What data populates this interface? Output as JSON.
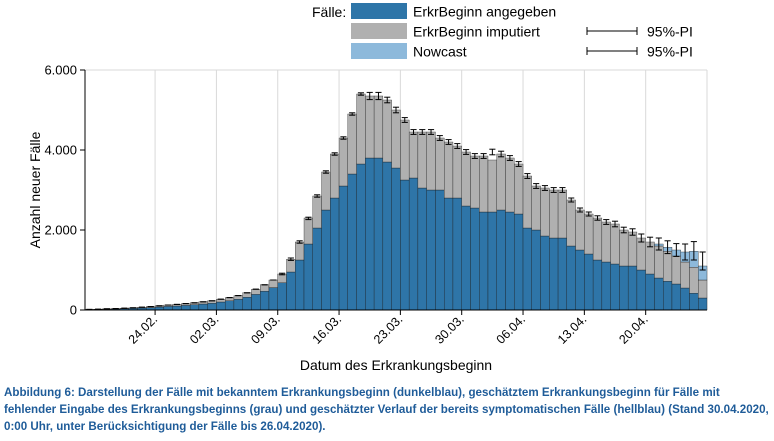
{
  "chart_data": {
    "type": "bar",
    "stacked": true,
    "title": "",
    "xlabel": "Datum des Erkrankungsbeginn",
    "ylabel": "Anzahl neuer Fälle",
    "ylim": [
      0,
      6000
    ],
    "yticks": [
      0,
      2000,
      4000,
      6000
    ],
    "ytick_labels": [
      "0",
      "2.000",
      "4.000",
      "6.000"
    ],
    "grid": "vertical",
    "xtick_labels": [
      "24.02.",
      "02.03.",
      "09.03.",
      "16.03.",
      "23.03.",
      "30.03.",
      "06.04.",
      "13.04.",
      "20.04."
    ],
    "xtick_indices": [
      8,
      15,
      22,
      29,
      36,
      43,
      50,
      57,
      64
    ],
    "categories": [
      "16.02.",
      "17.02.",
      "18.02.",
      "19.02.",
      "20.02.",
      "21.02.",
      "22.02.",
      "23.02.",
      "24.02.",
      "25.02.",
      "26.02.",
      "27.02.",
      "28.02.",
      "29.02.",
      "01.03.",
      "02.03.",
      "03.03.",
      "04.03.",
      "05.03.",
      "06.03.",
      "07.03.",
      "08.03.",
      "09.03.",
      "10.03.",
      "11.03.",
      "12.03.",
      "13.03.",
      "14.03.",
      "15.03.",
      "16.03.",
      "17.03.",
      "18.03.",
      "19.03.",
      "20.03.",
      "21.03.",
      "22.03.",
      "23.03.",
      "24.03.",
      "25.03.",
      "26.03.",
      "27.03.",
      "28.03.",
      "29.03.",
      "30.03.",
      "31.03.",
      "01.04.",
      "02.04.",
      "03.04.",
      "04.04.",
      "05.04.",
      "06.04.",
      "07.04.",
      "08.04.",
      "09.04.",
      "10.04.",
      "11.04.",
      "12.04.",
      "13.04.",
      "14.04.",
      "15.04.",
      "16.04.",
      "17.04.",
      "18.04.",
      "19.04.",
      "20.04.",
      "21.04.",
      "22.04.",
      "23.04.",
      "24.04.",
      "25.04.",
      "26.04."
    ],
    "legend": {
      "title": "Fälle:",
      "placement": "top",
      "pi_label": "95%-PI",
      "entries": [
        {
          "name": "ErkrBeginn angegeben",
          "color": "#2e75a8"
        },
        {
          "name": "ErkrBeginn imputiert",
          "color": "#b0b0b0"
        },
        {
          "name": "Nowcast",
          "color": "#8db9db"
        }
      ]
    },
    "series": [
      {
        "name": "ErkrBeginn angegeben",
        "color": "#2e75a8",
        "values": [
          10,
          15,
          20,
          25,
          30,
          40,
          50,
          60,
          75,
          90,
          100,
          115,
          130,
          150,
          170,
          200,
          230,
          270,
          320,
          390,
          470,
          560,
          680,
          950,
          1250,
          1650,
          2050,
          2500,
          2800,
          3100,
          3400,
          3650,
          3800,
          3800,
          3700,
          3550,
          3250,
          3300,
          3050,
          3000,
          3000,
          2800,
          2800,
          2600,
          2550,
          2450,
          2450,
          2500,
          2450,
          2400,
          2050,
          2000,
          1850,
          1800,
          1800,
          1600,
          1500,
          1400,
          1250,
          1200,
          1150,
          1100,
          1100,
          1000,
          900,
          800,
          720,
          650,
          550,
          420,
          300
        ]
      },
      {
        "name": "ErkrBeginn imputiert",
        "color": "#b0b0b0",
        "values": [
          5,
          5,
          10,
          10,
          15,
          15,
          20,
          25,
          30,
          35,
          40,
          45,
          50,
          55,
          60,
          70,
          80,
          90,
          110,
          130,
          160,
          190,
          220,
          320,
          450,
          650,
          800,
          950,
          1100,
          1200,
          1500,
          1750,
          1550,
          1550,
          1550,
          1450,
          1500,
          1150,
          1400,
          1450,
          1300,
          1400,
          1300,
          1350,
          1300,
          1400,
          1300,
          1400,
          1350,
          1250,
          1300,
          1100,
          1200,
          1200,
          1200,
          1150,
          1000,
          1000,
          1050,
          1000,
          1000,
          900,
          850,
          800,
          800,
          800,
          750,
          700,
          650,
          650,
          450
        ]
      },
      {
        "name": "Nowcast",
        "color": "#8db9db",
        "values": [
          0,
          0,
          0,
          0,
          0,
          0,
          0,
          0,
          0,
          0,
          0,
          0,
          0,
          0,
          0,
          0,
          0,
          0,
          0,
          0,
          0,
          0,
          0,
          0,
          0,
          0,
          0,
          0,
          0,
          0,
          0,
          0,
          0,
          0,
          0,
          0,
          0,
          0,
          0,
          0,
          0,
          0,
          0,
          0,
          0,
          0,
          0,
          0,
          0,
          0,
          0,
          0,
          0,
          0,
          0,
          0,
          0,
          0,
          0,
          0,
          0,
          0,
          0,
          0,
          0,
          50,
          100,
          150,
          250,
          400,
          350
        ]
      }
    ],
    "pi_intervals": [
      [
        15,
        15
      ],
      [
        20,
        20
      ],
      [
        30,
        30
      ],
      [
        35,
        35
      ],
      [
        45,
        45
      ],
      [
        55,
        55
      ],
      [
        70,
        70
      ],
      [
        85,
        85
      ],
      [
        105,
        105
      ],
      [
        125,
        125
      ],
      [
        140,
        140
      ],
      [
        160,
        160
      ],
      [
        180,
        180
      ],
      [
        205,
        205
      ],
      [
        230,
        230
      ],
      [
        270,
        270
      ],
      [
        310,
        310
      ],
      [
        360,
        360
      ],
      [
        430,
        430
      ],
      [
        520,
        520
      ],
      [
        630,
        630
      ],
      [
        750,
        750
      ],
      [
        880,
        920
      ],
      [
        1240,
        1300
      ],
      [
        1670,
        1730
      ],
      [
        2260,
        2320
      ],
      [
        2820,
        2880
      ],
      [
        3420,
        3480
      ],
      [
        3870,
        3930
      ],
      [
        4270,
        4330
      ],
      [
        4870,
        4930
      ],
      [
        5370,
        5430
      ],
      [
        5260,
        5440
      ],
      [
        5260,
        5440
      ],
      [
        5180,
        5320
      ],
      [
        4930,
        5070
      ],
      [
        4690,
        4810
      ],
      [
        4390,
        4510
      ],
      [
        4390,
        4510
      ],
      [
        4390,
        4510
      ],
      [
        4240,
        4360
      ],
      [
        4140,
        4260
      ],
      [
        4040,
        4160
      ],
      [
        3890,
        4010
      ],
      [
        3790,
        3910
      ],
      [
        3790,
        3910
      ],
      [
        3880,
        4020
      ],
      [
        3830,
        3970
      ],
      [
        3740,
        3860
      ],
      [
        3590,
        3710
      ],
      [
        3290,
        3410
      ],
      [
        3040,
        3160
      ],
      [
        2990,
        3110
      ],
      [
        2940,
        3060
      ],
      [
        2940,
        3060
      ],
      [
        2700,
        2800
      ],
      [
        2450,
        2550
      ],
      [
        2350,
        2450
      ],
      [
        2245,
        2355
      ],
      [
        2140,
        2260
      ],
      [
        2080,
        2220
      ],
      [
        1930,
        2070
      ],
      [
        1870,
        2030
      ],
      [
        1700,
        1900
      ],
      [
        1580,
        1820
      ],
      [
        1500,
        1800
      ],
      [
        1410,
        1730
      ],
      [
        1340,
        1660
      ],
      [
        1250,
        1650
      ],
      [
        1250,
        1710
      ],
      [
        1000,
        1450
      ]
    ]
  },
  "caption": "Abbildung 6: Darstellung der Fälle mit bekanntem Erkrankungsbeginn (dunkelblau), geschätztem Erkrankungsbeginn für Fälle mit fehlender Eingabe des Erkrankungsbeginns (grau) und geschätzter Verlauf der bereits symptomatischen Fälle (hellblau) (Stand 30.04.2020, 0:00 Uhr, unter Berücksichtigung der Fälle bis 26.04.2020)."
}
